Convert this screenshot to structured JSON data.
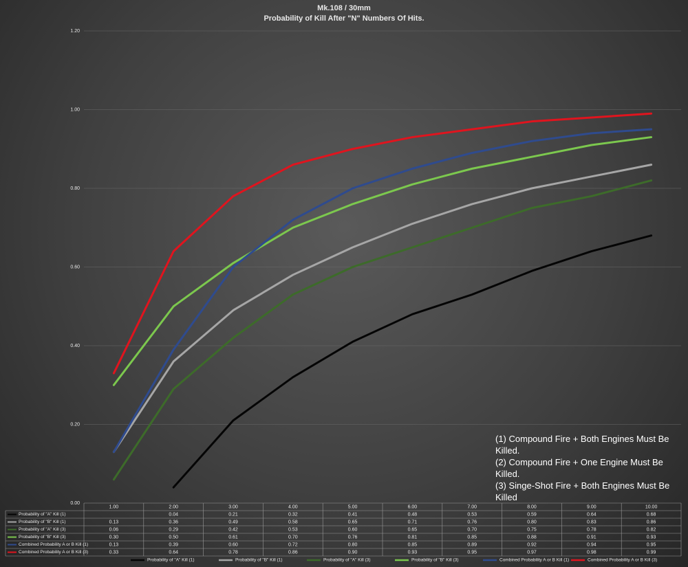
{
  "chart_data": {
    "type": "line",
    "title": "Mk.108 / 30mm",
    "subtitle": "Probability of Kill After \"N\" Numbers Of Hits.",
    "categories": [
      "1.00",
      "2.00",
      "3.00",
      "4.00",
      "5.00",
      "6.00",
      "7.00",
      "8.00",
      "9.00",
      "10.00"
    ],
    "ylim": [
      0,
      1.2
    ],
    "yticks": [
      {
        "value": 0,
        "label": "0.00"
      },
      {
        "value": 0.2,
        "label": "0.20"
      },
      {
        "value": 0.4,
        "label": "0.40"
      },
      {
        "value": 0.6,
        "label": "0.60"
      },
      {
        "value": 0.8,
        "label": "0.80"
      },
      {
        "value": 1.0,
        "label": "1.00"
      },
      {
        "value": 1.2,
        "label": "1.20"
      }
    ],
    "grid": true,
    "series": [
      {
        "name": "Probability of \"A\" Kill (1)",
        "color": "#050505",
        "values": [
          null,
          0.04,
          0.21,
          0.32,
          0.41,
          0.48,
          0.53,
          0.59,
          0.64,
          0.68
        ],
        "value_labels": [
          null,
          "0.04",
          "0.21",
          "0.32",
          "0.41",
          "0.48",
          "0.53",
          "0.59",
          "0.64",
          "0.68"
        ]
      },
      {
        "name": "Probability of \"B\" Kill (1)",
        "color": "#a6a6a6",
        "values": [
          0.13,
          0.36,
          0.49,
          0.58,
          0.65,
          0.71,
          0.76,
          0.8,
          0.83,
          0.86
        ],
        "value_labels": [
          "0.13",
          "0.36",
          "0.49",
          "0.58",
          "0.65",
          "0.71",
          "0.76",
          "0.80",
          "0.83",
          "0.86"
        ]
      },
      {
        "name": "Probability of \"A\" Kill (3)",
        "color": "#3d6b2a",
        "values": [
          0.06,
          0.29,
          0.42,
          0.53,
          0.6,
          0.65,
          0.7,
          0.75,
          0.78,
          0.82
        ],
        "value_labels": [
          "0.06",
          "0.29",
          "0.42",
          "0.53",
          "0.60",
          "0.65",
          "0.70",
          "0.75",
          "0.78",
          "0.82"
        ]
      },
      {
        "name": "Probability of \"B\" Kill (3)",
        "color": "#7cc84e",
        "values": [
          0.3,
          0.5,
          0.61,
          0.7,
          0.76,
          0.81,
          0.85,
          0.88,
          0.91,
          0.93
        ],
        "value_labels": [
          "0.30",
          "0.50",
          "0.61",
          "0.70",
          "0.76",
          "0.81",
          "0.85",
          "0.88",
          "0.91",
          "0.93"
        ]
      },
      {
        "name": "Combined Probability A or B Kill (1)",
        "color": "#2f4b8e",
        "values": [
          0.13,
          0.39,
          0.6,
          0.72,
          0.8,
          0.85,
          0.89,
          0.92,
          0.94,
          0.95
        ],
        "value_labels": [
          "0.13",
          "0.39",
          "0.60",
          "0.72",
          "0.80",
          "0.85",
          "0.89",
          "0.92",
          "0.94",
          "0.95"
        ]
      },
      {
        "name": "Combined Probability A or B Kill (3)",
        "color": "#e0141e",
        "values": [
          0.33,
          0.64,
          0.78,
          0.86,
          0.9,
          0.93,
          0.95,
          0.97,
          0.98,
          0.99
        ],
        "value_labels": [
          "0.33",
          "0.64",
          "0.78",
          "0.86",
          "0.90",
          "0.93",
          "0.95",
          "0.97",
          "0.98",
          "0.99"
        ]
      }
    ],
    "annotations": [
      "(1) Compound Fire + Both Engines Must Be Killed.",
      "(2) Compound Fire + One Engine Must Be Killed.",
      "(3) Singe-Shot Fire + Both Engines Must Be Killed"
    ]
  }
}
